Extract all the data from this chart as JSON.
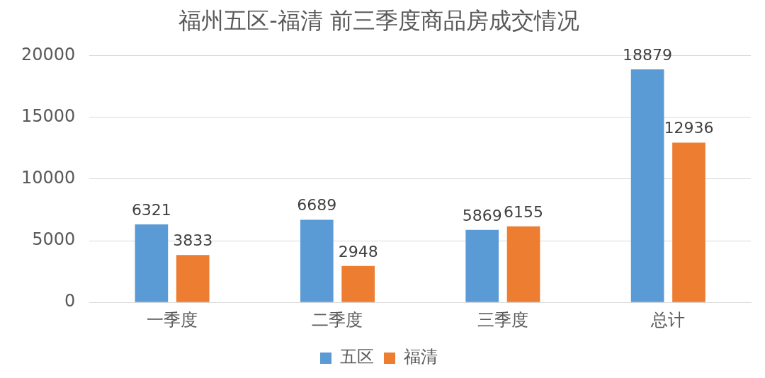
{
  "chart_data": {
    "type": "bar",
    "title": "福州五区-福清 前三季度商品房成交情况",
    "categories": [
      "一季度",
      "二季度",
      "三季度",
      "总计"
    ],
    "series": [
      {
        "name": "五区",
        "color": "#5b9bd5",
        "values": [
          6321,
          6689,
          5869,
          18879
        ]
      },
      {
        "name": "福清",
        "color": "#ed7d31",
        "values": [
          3833,
          2948,
          6155,
          12936
        ]
      }
    ],
    "ylim": [
      0,
      20000
    ],
    "yticks": [
      0,
      5000,
      10000,
      15000,
      20000
    ],
    "grid": "y",
    "legend": "bottom",
    "data_labels": true
  }
}
